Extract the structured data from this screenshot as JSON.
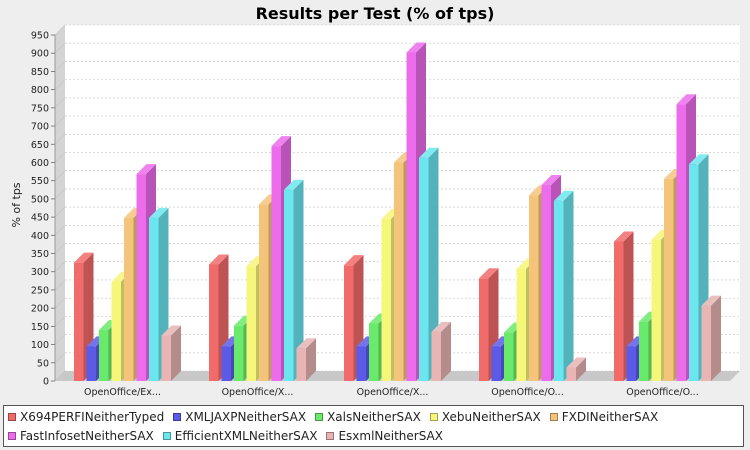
{
  "chart_data": {
    "type": "bar",
    "title": "Results per Test (% of tps)",
    "xlabel": "",
    "ylabel": "% of tps",
    "ylim": [
      0,
      950
    ],
    "yticks": [
      0,
      50,
      100,
      150,
      200,
      250,
      300,
      350,
      400,
      450,
      500,
      550,
      600,
      650,
      700,
      750,
      800,
      850,
      900,
      950
    ],
    "grid": true,
    "legend_position": "bottom",
    "categories": [
      "OpenOffice/Ex...",
      "OpenOffice/X...",
      "OpenOffice/X...",
      "OpenOffice/O...",
      "OpenOffice/O..."
    ],
    "series": [
      {
        "name": "X694PERFINeitherTyped",
        "color": "#f26b6b",
        "values": [
          325,
          320,
          318,
          282,
          383
        ]
      },
      {
        "name": "XMLJAXPNeitherSAX",
        "color": "#5b5be8",
        "values": [
          95,
          95,
          95,
          95,
          95
        ]
      },
      {
        "name": "XalsNeitherSAX",
        "color": "#6aea6a",
        "values": [
          140,
          152,
          158,
          133,
          163
        ]
      },
      {
        "name": "XebuNeitherSAX",
        "color": "#f6f67a",
        "values": [
          273,
          315,
          445,
          308,
          388
        ]
      },
      {
        "name": "FXDINeitherSAX",
        "color": "#f4c47a",
        "values": [
          448,
          485,
          600,
          510,
          555
        ]
      },
      {
        "name": "FastInfosetNeitherSAX",
        "color": "#ec6cec",
        "values": [
          568,
          645,
          902,
          538,
          760
        ]
      },
      {
        "name": "EfficientXMLNeitherSAX",
        "color": "#6ce6ee",
        "values": [
          448,
          525,
          613,
          495,
          595
        ]
      },
      {
        "name": "EsxmlNeitherSAX",
        "color": "#e8b4b4",
        "values": [
          125,
          90,
          135,
          37,
          207
        ]
      }
    ]
  }
}
